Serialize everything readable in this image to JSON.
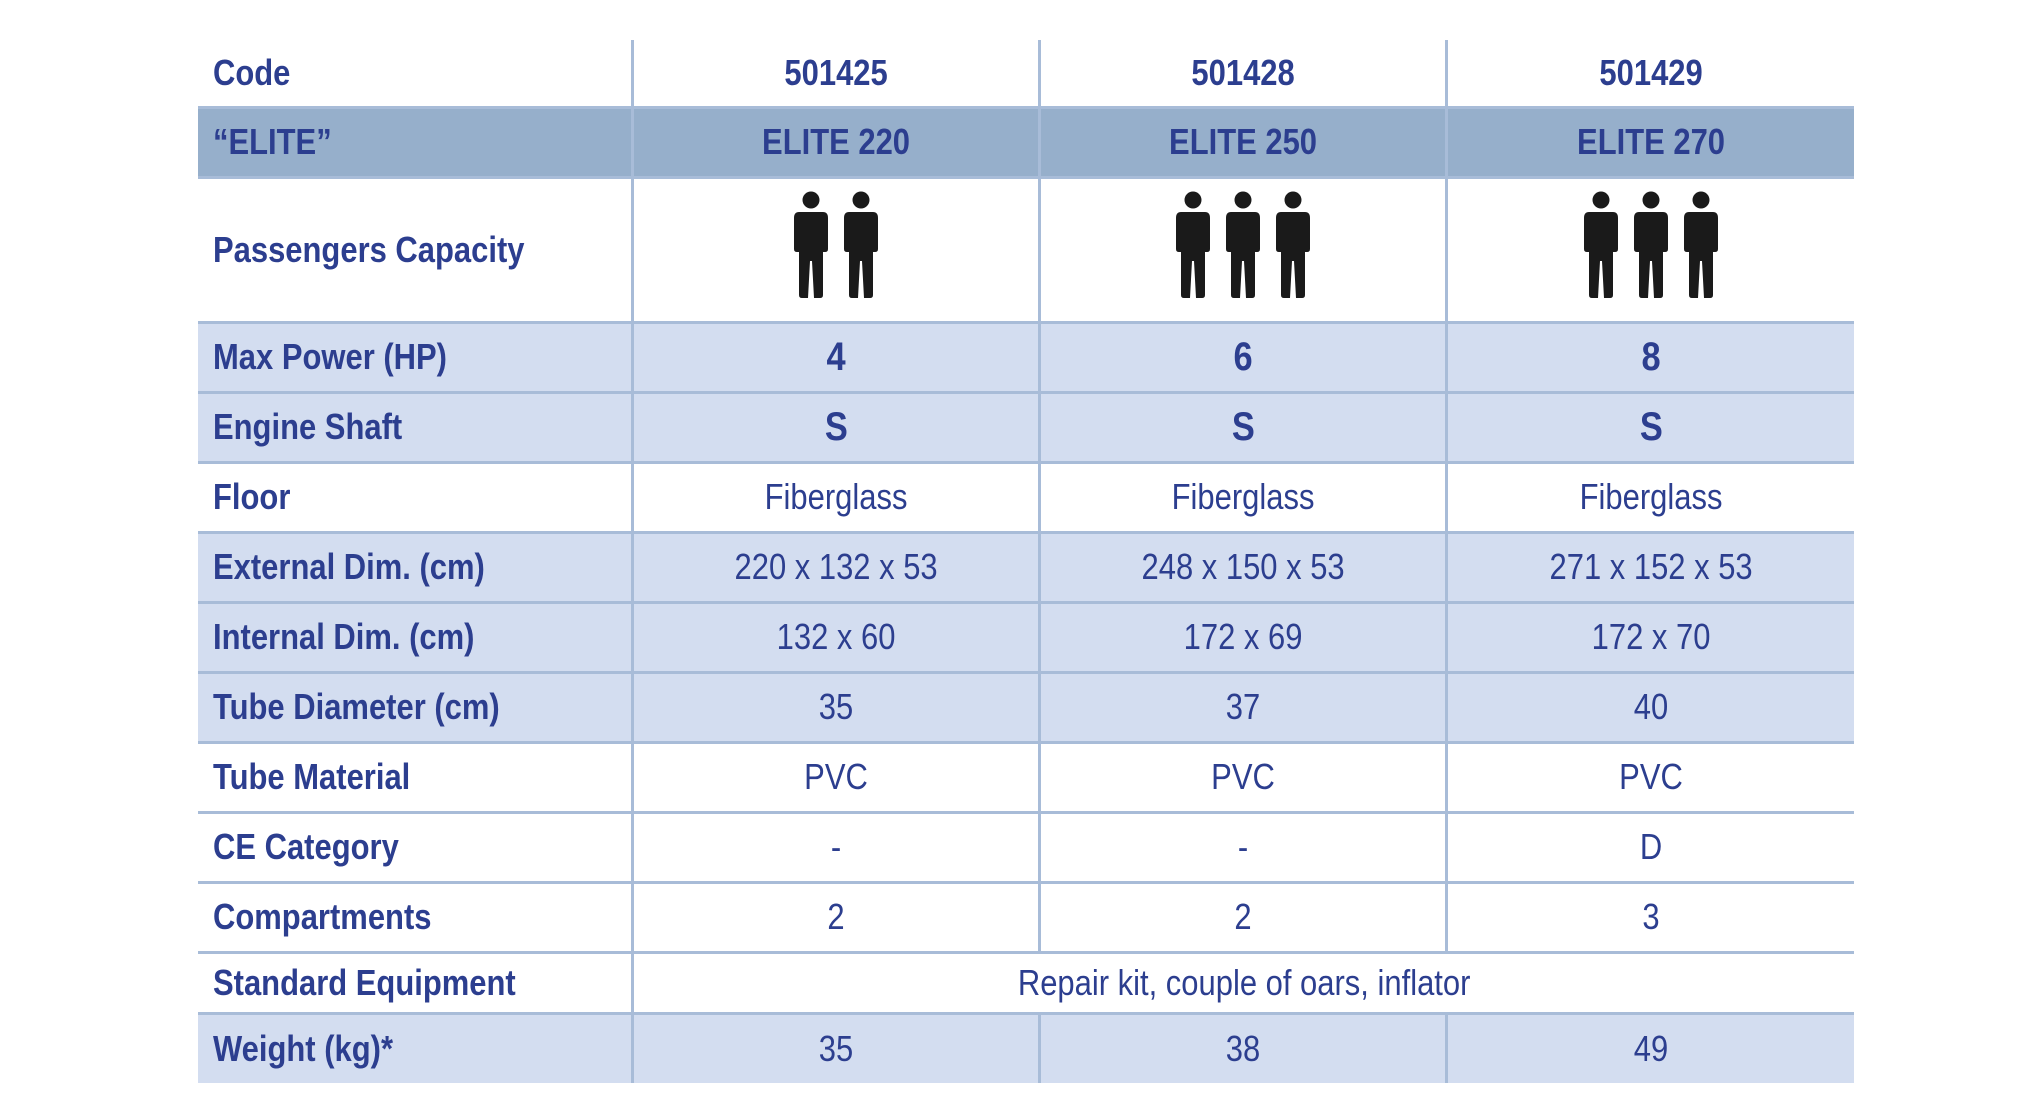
{
  "table": {
    "header": {
      "label": "Code",
      "codes": [
        "501425",
        "501428",
        "501429"
      ]
    },
    "series": {
      "label": "“ELITE”",
      "models": [
        "ELITE 220",
        "ELITE 250",
        "ELITE 270"
      ]
    },
    "passengers": {
      "label": "Passengers Capacity",
      "counts": [
        2,
        3,
        3
      ],
      "icon": "person-icon"
    },
    "rows": [
      {
        "label": "Max Power (HP)",
        "values": [
          "4",
          "6",
          "8"
        ]
      },
      {
        "label": "Engine Shaft",
        "values": [
          "S",
          "S",
          "S"
        ]
      },
      {
        "label": "Floor",
        "values": [
          "Fiberglass",
          "Fiberglass",
          "Fiberglass"
        ]
      },
      {
        "label": "External Dim. (cm)",
        "values": [
          "220 x 132 x 53",
          "248 x 150 x 53",
          "271 x 152 x 53"
        ]
      },
      {
        "label": "Internal Dim. (cm)",
        "values": [
          "132 x 60",
          "172 x 69",
          "172 x 70"
        ]
      },
      {
        "label": "Tube Diameter (cm)",
        "values": [
          "35",
          "37",
          "40"
        ]
      },
      {
        "label": "Tube Material",
        "values": [
          "PVC",
          "PVC",
          "PVC"
        ]
      },
      {
        "label": "CE Category",
        "values": [
          "-",
          "-",
          "D"
        ]
      },
      {
        "label": "Compartments",
        "values": [
          "2",
          "2",
          "3"
        ]
      }
    ],
    "equipment": {
      "label": "Standard Equipment",
      "value": "Repair kit, couple of oars, inflator"
    },
    "weight": {
      "label": "Weight (kg)*",
      "values": [
        "35",
        "38",
        "49"
      ]
    }
  },
  "colors": {
    "text": "#2c3e8f",
    "header_band": "#96afcb",
    "row_shade": "#d3ddf0",
    "grid_line": "#a8bcd8",
    "icon": "#1a1a1a"
  }
}
